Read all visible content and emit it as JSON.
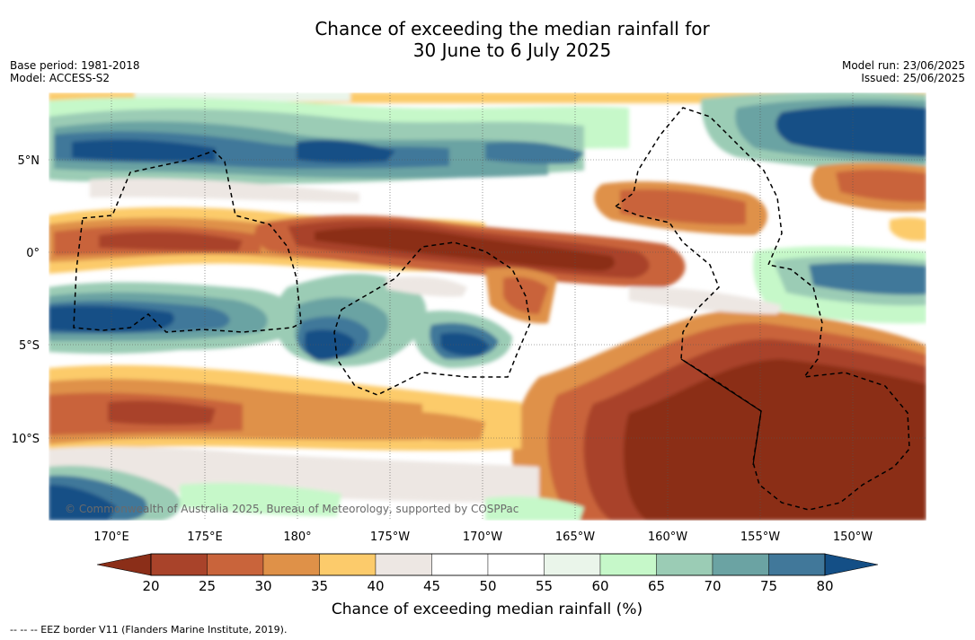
{
  "title": {
    "line1": "Chance of exceeding the median rainfall for",
    "line2": "30 June to 6 July 2025"
  },
  "meta": {
    "base_period": "Base period: 1981-2018",
    "model": "Model: ACCESS-S2",
    "model_run": "Model run: 23/06/2025",
    "issued": "Issued: 25/06/2025"
  },
  "map": {
    "region": "Tropical South Pacific",
    "projection": "equirectangular",
    "lon_labels": [
      "170°E",
      "175°E",
      "180°",
      "175°W",
      "170°W",
      "165°W",
      "160°W",
      "155°W",
      "150°W"
    ],
    "lat_labels": [
      "5°N",
      "0°",
      "5°S",
      "10°S"
    ],
    "copyright": "© Commonwealth of Australia 2025, Bureau of Meteorology, supported by COSPPac",
    "overlay": "EEZ boundaries (dashed)"
  },
  "colorbar": {
    "label": "Chance of exceeding median rainfall (%)",
    "ticks": [
      "20",
      "25",
      "30",
      "35",
      "40",
      "45",
      "50",
      "55",
      "60",
      "65",
      "70",
      "75",
      "80"
    ],
    "low_extend_color": "#8b2e18",
    "high_extend_color": "#144f86",
    "bins": [
      {
        "range": "20-25",
        "color": "#a9432a"
      },
      {
        "range": "25-30",
        "color": "#c9643b"
      },
      {
        "range": "30-35",
        "color": "#df9148"
      },
      {
        "range": "35-40",
        "color": "#fccb6b"
      },
      {
        "range": "40-45",
        "color": "#ede7e3"
      },
      {
        "range": "45-50",
        "color": "#ffffff"
      },
      {
        "range": "50-55",
        "color": "#ffffff"
      },
      {
        "range": "55-60",
        "color": "#eaf5ea"
      },
      {
        "range": "60-65",
        "color": "#c6f8c9"
      },
      {
        "range": "65-70",
        "color": "#9bccb5"
      },
      {
        "range": "70-75",
        "color": "#6ba3a3"
      },
      {
        "range": "75-80",
        "color": "#41789a"
      }
    ]
  },
  "footer": {
    "eez_note": "--  --  -- EEZ border V11 (Flanders Marine Institute, 2019)."
  }
}
